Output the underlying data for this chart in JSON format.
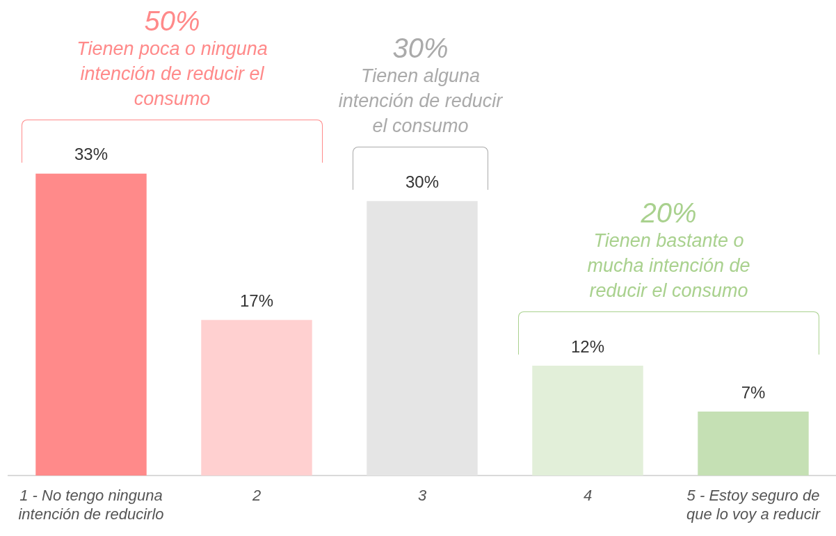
{
  "chart_data": {
    "type": "bar",
    "categories": [
      "1 - No tengo ninguna intención de reducirlo",
      "2",
      "3",
      "4",
      "5 - Estoy seguro de que lo voy a reducir"
    ],
    "values": [
      33,
      17,
      30,
      12,
      7
    ],
    "colors": [
      "#ff8a8a",
      "#ffd0d0",
      "#e5e5e5",
      "#e2efd9",
      "#c5e0b4"
    ],
    "data_labels": true,
    "value_labels": [
      "33%",
      "17%",
      "30%",
      "12%",
      "7%"
    ],
    "annotations": [
      "50%",
      "Tienen poca o ninguna intención de reducir el consumo",
      "30%",
      "Tienen alguna intención de reducir el consumo",
      "20%",
      "Tienen bastante o mucha intención de reducir el consumo"
    ],
    "legend": false
  }
}
